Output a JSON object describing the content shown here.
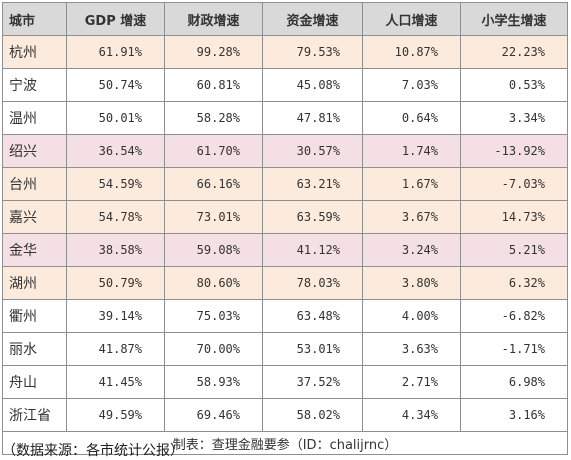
{
  "headers": {
    "city": "城市",
    "gdp": "GDP 增速",
    "fiscal": "财政增速",
    "capital": "资金增速",
    "population": "人口增速",
    "pupils": "小学生增速"
  },
  "rows": [
    {
      "city": "杭州",
      "gdp": "61.91%",
      "fiscal": "99.28%",
      "capital": "79.53%",
      "population": "10.87%",
      "pupils": "22.23%",
      "highlight": "orange"
    },
    {
      "city": "宁波",
      "gdp": "50.74%",
      "fiscal": "60.81%",
      "capital": "45.08%",
      "population": "7.03%",
      "pupils": "0.53%",
      "highlight": "none"
    },
    {
      "city": "温州",
      "gdp": "50.01%",
      "fiscal": "58.28%",
      "capital": "47.81%",
      "population": "0.64%",
      "pupils": "3.34%",
      "highlight": "none"
    },
    {
      "city": "绍兴",
      "gdp": "36.54%",
      "fiscal": "61.70%",
      "capital": "30.57%",
      "population": "1.74%",
      "pupils": "-13.92%",
      "highlight": "pink"
    },
    {
      "city": "台州",
      "gdp": "54.59%",
      "fiscal": "66.16%",
      "capital": "63.21%",
      "population": "1.67%",
      "pupils": "-7.03%",
      "highlight": "orange"
    },
    {
      "city": "嘉兴",
      "gdp": "54.78%",
      "fiscal": "73.01%",
      "capital": "63.59%",
      "population": "3.67%",
      "pupils": "14.73%",
      "highlight": "orange"
    },
    {
      "city": "金华",
      "gdp": "38.58%",
      "fiscal": "59.08%",
      "capital": "41.12%",
      "population": "3.24%",
      "pupils": "5.21%",
      "highlight": "pink"
    },
    {
      "city": "湖州",
      "gdp": "50.79%",
      "fiscal": "80.60%",
      "capital": "78.03%",
      "population": "3.80%",
      "pupils": "6.32%",
      "highlight": "orange"
    },
    {
      "city": "衢州",
      "gdp": "39.14%",
      "fiscal": "75.03%",
      "capital": "63.48%",
      "population": "4.00%",
      "pupils": "-6.82%",
      "highlight": "none"
    },
    {
      "city": "丽水",
      "gdp": "41.87%",
      "fiscal": "70.00%",
      "capital": "53.01%",
      "population": "3.63%",
      "pupils": "-1.71%",
      "highlight": "none"
    },
    {
      "city": "舟山",
      "gdp": "41.45%",
      "fiscal": "58.93%",
      "capital": "37.52%",
      "population": "2.71%",
      "pupils": "6.98%",
      "highlight": "none"
    },
    {
      "city": "浙江省",
      "gdp": "49.59%",
      "fiscal": "69.46%",
      "capital": "58.02%",
      "population": "4.34%",
      "pupils": "3.16%",
      "highlight": "none"
    }
  ],
  "caption": "制表：查理金融要参（ID：chalijrnc）",
  "source": "（数据来源：各市统计公报）",
  "colors": {
    "header_bg": "#d9d9d9",
    "highlight_orange": "#fcebdc",
    "highlight_pink": "#f4dfe5",
    "border": "#8f8f8f"
  }
}
